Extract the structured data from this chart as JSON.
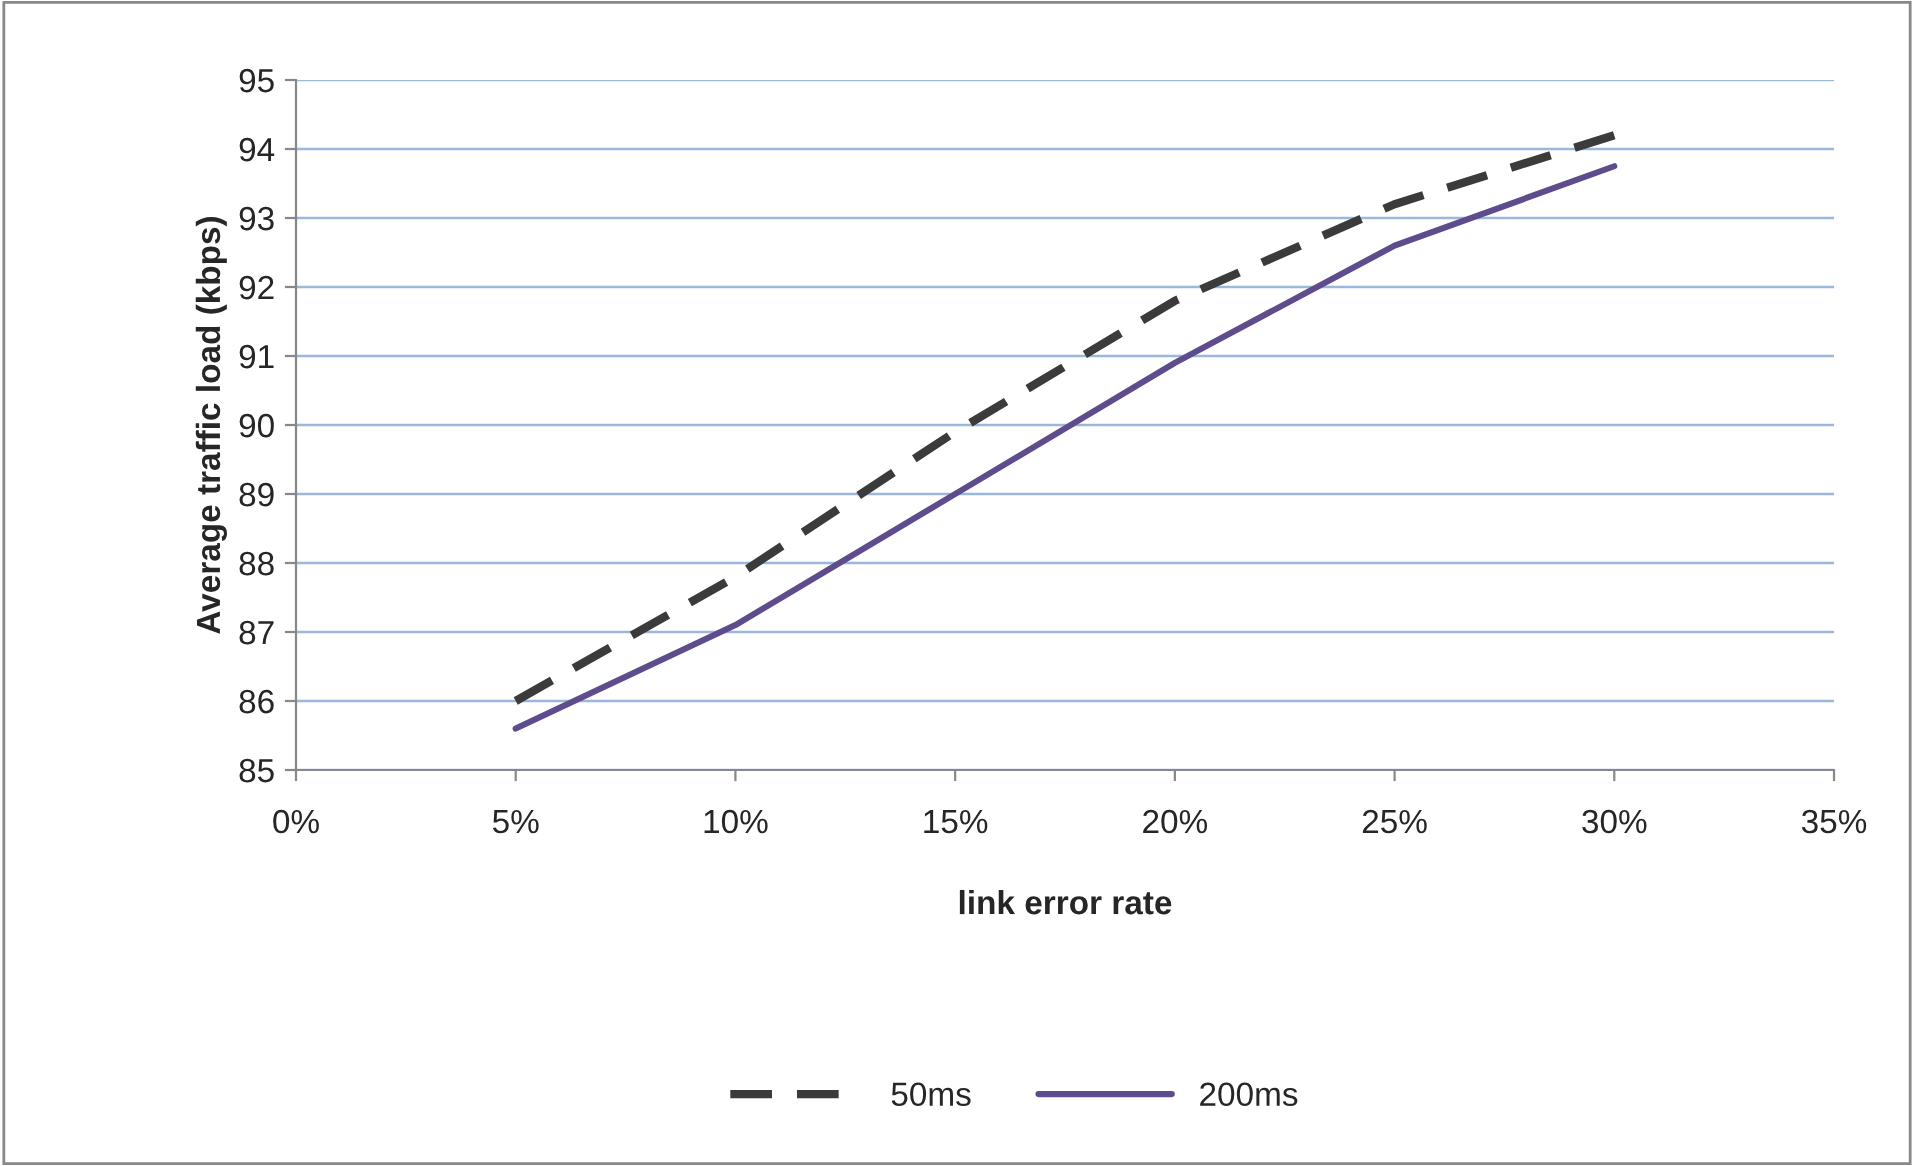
{
  "chart_data": {
    "type": "line",
    "xlabel": "link error rate",
    "ylabel": "Average traffic load (kbps)",
    "x": [
      5,
      10,
      15,
      20,
      25,
      30
    ],
    "series": [
      {
        "name": "50ms",
        "color": "#3b3b3b",
        "line_style": "dashed",
        "values": [
          86.0,
          87.8,
          89.9,
          91.8,
          93.2,
          94.2
        ]
      },
      {
        "name": "200ms",
        "color": "#5e4c8c",
        "line_style": "solid",
        "values": [
          85.6,
          87.1,
          89.0,
          90.9,
          92.6,
          93.75
        ]
      }
    ],
    "xlim": [
      0,
      35
    ],
    "xticks": [
      {
        "value": 0,
        "label": "0%"
      },
      {
        "value": 5,
        "label": "5%"
      },
      {
        "value": 10,
        "label": "10%"
      },
      {
        "value": 15,
        "label": "15%"
      },
      {
        "value": 20,
        "label": "20%"
      },
      {
        "value": 25,
        "label": "25%"
      },
      {
        "value": 30,
        "label": "30%"
      },
      {
        "value": 35,
        "label": "35%"
      }
    ],
    "ylim": [
      85,
      95
    ],
    "yticks": [
      85,
      86,
      87,
      88,
      89,
      90,
      91,
      92,
      93,
      94,
      95
    ],
    "grid": "y",
    "legend": "bottom",
    "marker": "none"
  }
}
